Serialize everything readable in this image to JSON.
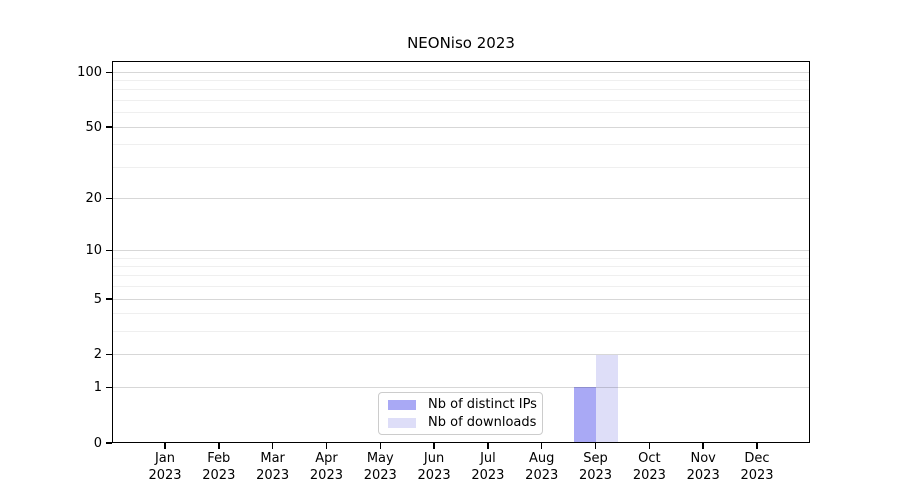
{
  "title": "NEONiso 2023",
  "chart_data": {
    "type": "bar",
    "title": "NEONiso 2023",
    "categories": [
      "Jan 2023",
      "Feb 2023",
      "Mar 2023",
      "Apr 2023",
      "May 2023",
      "Jun 2023",
      "Jul 2023",
      "Aug 2023",
      "Sep 2023",
      "Oct 2023",
      "Nov 2023",
      "Dec 2023"
    ],
    "series": [
      {
        "name": "Nb of distinct IPs",
        "color": "#a9a9f5",
        "values": [
          0,
          0,
          0,
          0,
          0,
          0,
          0,
          0,
          1,
          0,
          0,
          0
        ]
      },
      {
        "name": "Nb of downloads",
        "color": "#dedef8",
        "values": [
          0,
          0,
          0,
          0,
          0,
          0,
          0,
          0,
          2,
          0,
          0,
          0
        ]
      }
    ],
    "xlabel": "",
    "ylabel": "",
    "yscale": "log1p",
    "ylim": [
      0,
      115
    ],
    "yticks_major": [
      0,
      1,
      2,
      5,
      10,
      20,
      50,
      100
    ],
    "yticks_minor": [
      3,
      4,
      6,
      7,
      8,
      9,
      30,
      40,
      60,
      70,
      80,
      90
    ],
    "grid": "horizontal",
    "legend_position": "lower center (inside axes)"
  }
}
